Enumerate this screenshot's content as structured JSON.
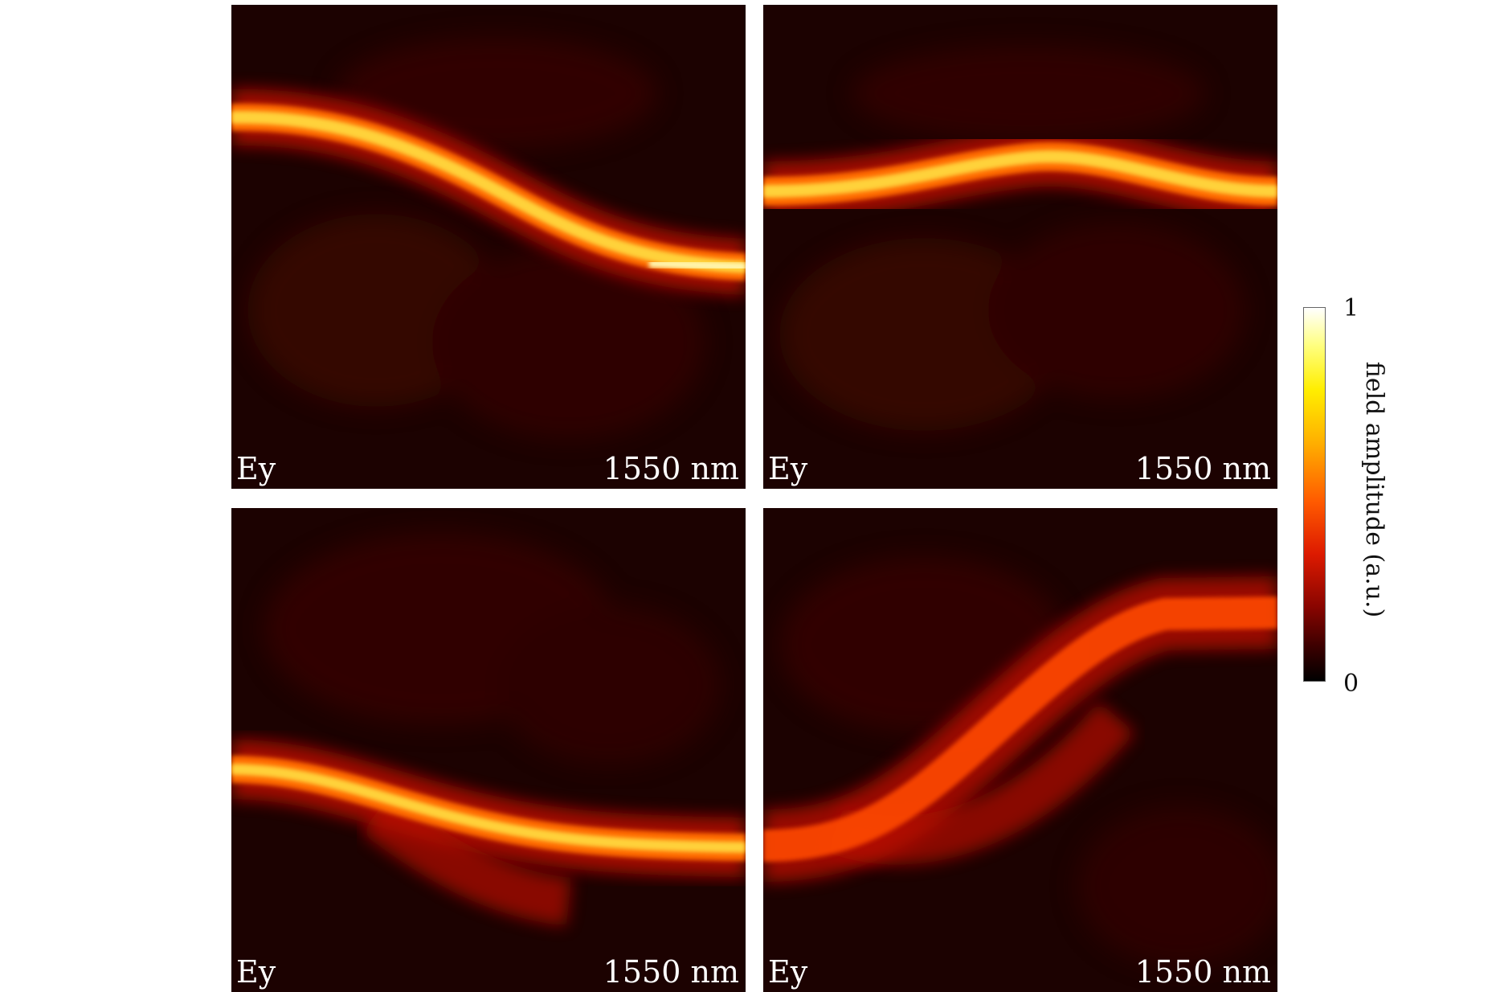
{
  "panels": [
    {
      "field_label": "Ey",
      "wavelength_label": "1550 nm",
      "input_port": "top-left",
      "output_port": "bottom-right"
    },
    {
      "field_label": "Ey",
      "wavelength_label": "1550 nm",
      "input_port": "middle-left",
      "output_port": "middle-right"
    },
    {
      "field_label": "Ey",
      "wavelength_label": "1550 nm",
      "input_port": "lower-left",
      "output_port": "lower-right"
    },
    {
      "field_label": "Ey",
      "wavelength_label": "1550 nm",
      "input_port": "bottom-left",
      "output_port": "upper-right"
    }
  ],
  "colorbar": {
    "max_label": "1",
    "min_label": "0",
    "title": "field amplitude (a.u.)",
    "colormap": "hot"
  }
}
